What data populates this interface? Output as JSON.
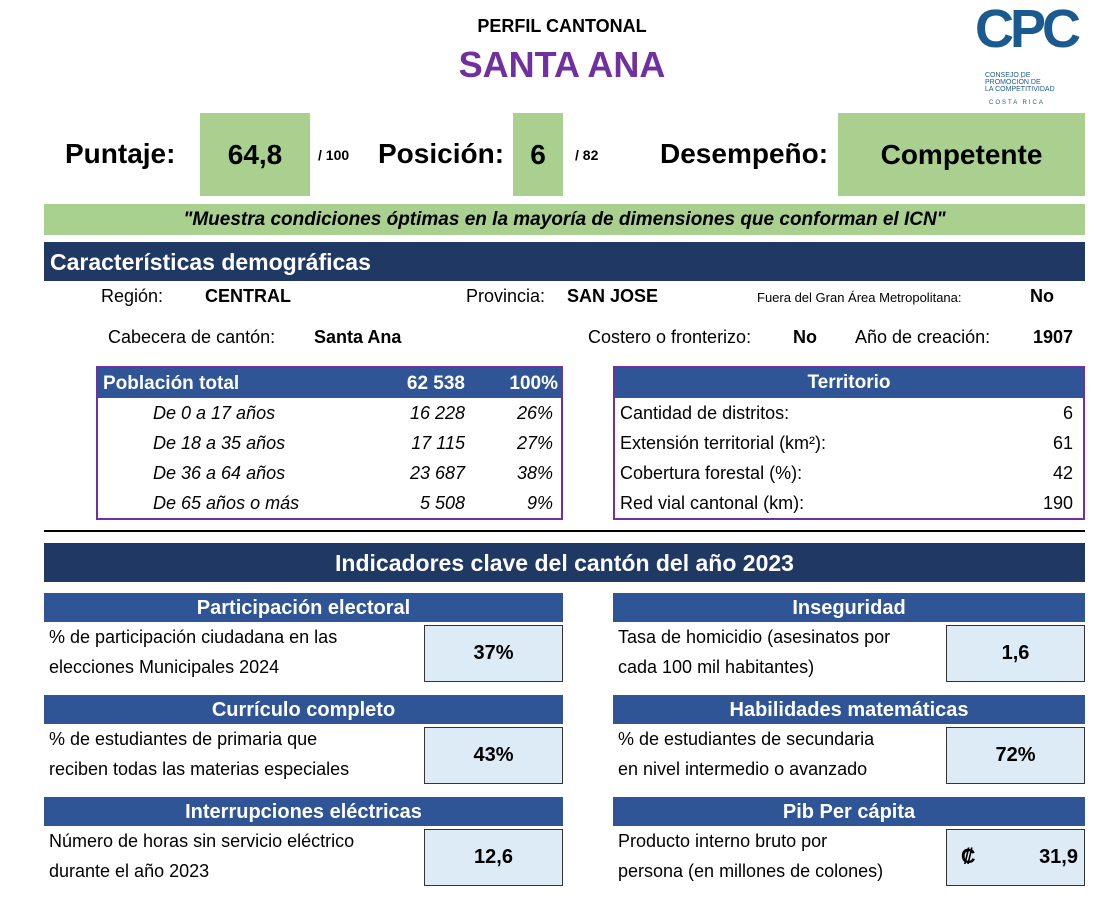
{
  "header": {
    "subtitle": "PERFIL CANTONAL",
    "title": "SANTA ANA",
    "logo": {
      "mark": "CPC",
      "lines": [
        "CONSEJO DE",
        "PROMOCIÓN DE",
        "LA COMPETITIVIDAD"
      ],
      "country": "COSTA RICA"
    }
  },
  "scores": {
    "puntaje": {
      "label": "Puntaje:",
      "value": "64,8",
      "max": "/ 100"
    },
    "posicion": {
      "label": "Posición:",
      "value": "6",
      "max": "/ 82"
    },
    "desempeno": {
      "label": "Desempeño:",
      "value": "Competente"
    }
  },
  "quote": "\"Muestra condiciones óptimas en la mayoría de dimensiones que conforman el ICN\"",
  "demographics": {
    "title": "Características demográficas",
    "fields": [
      {
        "label": "Región:",
        "value": "CENTRAL"
      },
      {
        "label": "Provincia:",
        "value": "SAN JOSE"
      },
      {
        "label": "Fuera del Gran Área Metropolitana:",
        "value": "No"
      },
      {
        "label": "Cabecera de cantón:",
        "value": "Santa Ana"
      },
      {
        "label": "Costero o fronterizo:",
        "value": "No"
      },
      {
        "label": "Año de creación:",
        "value": "1907"
      }
    ],
    "population": {
      "header": [
        "Población total",
        "62 538",
        "100%"
      ],
      "rows": [
        [
          "De 0 a 17 años",
          "16 228",
          "26%"
        ],
        [
          "De 18 a 35 años",
          "17 115",
          "27%"
        ],
        [
          "De 36 a 64 años",
          "23 687",
          "38%"
        ],
        [
          "De 65 años o más",
          "5 508",
          "9%"
        ]
      ]
    },
    "territory": {
      "header": "Territorio",
      "rows": [
        [
          "Cantidad de distritos:",
          "6"
        ],
        [
          "Extensión territorial (km²):",
          "61"
        ],
        [
          "Cobertura forestal (%):",
          "42"
        ],
        [
          "Red vial cantonal (km):",
          "190"
        ]
      ]
    }
  },
  "indicators": {
    "title": "Indicadores clave del cantón del año 2023",
    "cards": [
      {
        "title": "Participación electoral",
        "lines": [
          "% de participación ciudadana en las",
          "elecciones Municipales 2024"
        ],
        "value": "37%"
      },
      {
        "title": "Inseguridad",
        "lines": [
          "Tasa de homicidio (asesinatos por",
          "cada 100 mil habitantes)"
        ],
        "value": "1,6"
      },
      {
        "title": "Currículo completo",
        "lines": [
          "% de estudiantes de primaria que",
          "reciben todas las materias especiales"
        ],
        "value": "43%"
      },
      {
        "title": "Habilidades matemáticas",
        "lines": [
          "% de estudiantes de secundaria",
          "en nivel intermedio o avanzado"
        ],
        "value": "72%"
      },
      {
        "title": "Interrupciones eléctricas",
        "lines": [
          "Número de horas sin servicio eléctrico",
          "durante el año 2023"
        ],
        "value": "12,6"
      },
      {
        "title": "Pib Per cápita",
        "lines": [
          "Producto interno bruto por",
          "persona (en millones de colones)"
        ],
        "currency": "₡",
        "value": "31,9"
      }
    ]
  }
}
